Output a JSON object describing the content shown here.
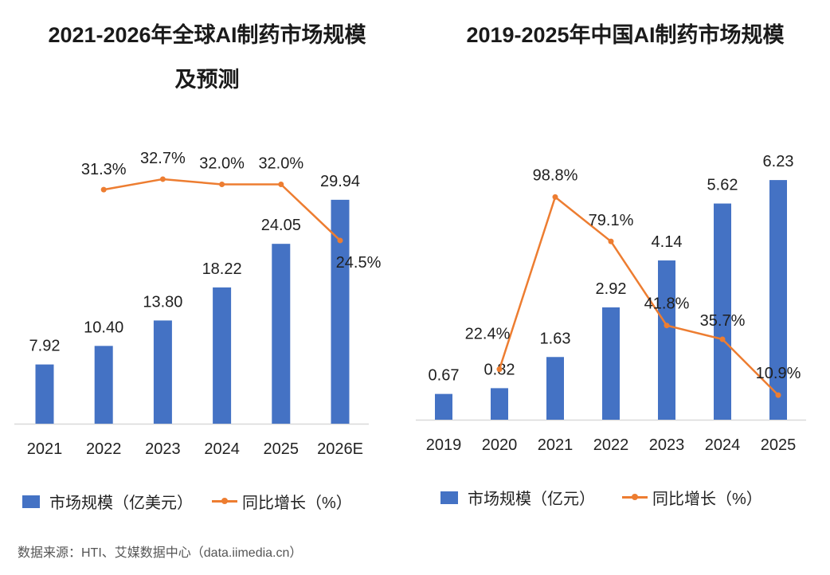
{
  "colors": {
    "bar": "#4472C4",
    "line": "#ED7D31",
    "axis": "#D9D9D9"
  },
  "source": "数据来源：HTI、艾媒数据中心（data.iimedia.cn）",
  "chart_data": [
    {
      "type": "bar+line",
      "title_line1": "2021-2026年全球AI制药市场规模",
      "title_line2": "及预测",
      "categories": [
        "2021",
        "2022",
        "2023",
        "2024",
        "2025",
        "2026E"
      ],
      "series": [
        {
          "name": "市场规模（亿美元）",
          "type": "bar",
          "values": [
            7.92,
            10.4,
            13.8,
            18.22,
            24.05,
            29.94
          ],
          "labels": [
            "7.92",
            "10.40",
            "13.80",
            "18.22",
            "24.05",
            "29.94"
          ]
        },
        {
          "name": "同比增长（%）",
          "type": "line",
          "values": [
            null,
            31.3,
            32.7,
            32.0,
            32.0,
            24.5
          ],
          "labels": [
            "",
            "31.3%",
            "32.7%",
            "32.0%",
            "32.0%",
            "24.5%"
          ]
        }
      ],
      "legend": "bottom",
      "grid": false
    },
    {
      "type": "bar+line",
      "title_line1": "2019-2025年中国AI制药市场规模",
      "categories": [
        "2019",
        "2020",
        "2021",
        "2022",
        "2023",
        "2024",
        "2025"
      ],
      "series": [
        {
          "name": "市场规模（亿元）",
          "type": "bar",
          "values": [
            0.67,
            0.82,
            1.63,
            2.92,
            4.14,
            5.62,
            6.23
          ],
          "labels": [
            "0.67",
            "0.82",
            "1.63",
            "2.92",
            "4.14",
            "5.62",
            "6.23"
          ]
        },
        {
          "name": "同比增长（%）",
          "type": "line",
          "values": [
            null,
            22.4,
            98.8,
            79.1,
            41.8,
            35.7,
            10.9
          ],
          "labels": [
            "",
            "22.4%",
            "98.8%",
            "79.1%",
            "41.8%",
            "35.7%",
            "10.9%"
          ]
        }
      ],
      "legend": "bottom",
      "grid": false
    }
  ]
}
